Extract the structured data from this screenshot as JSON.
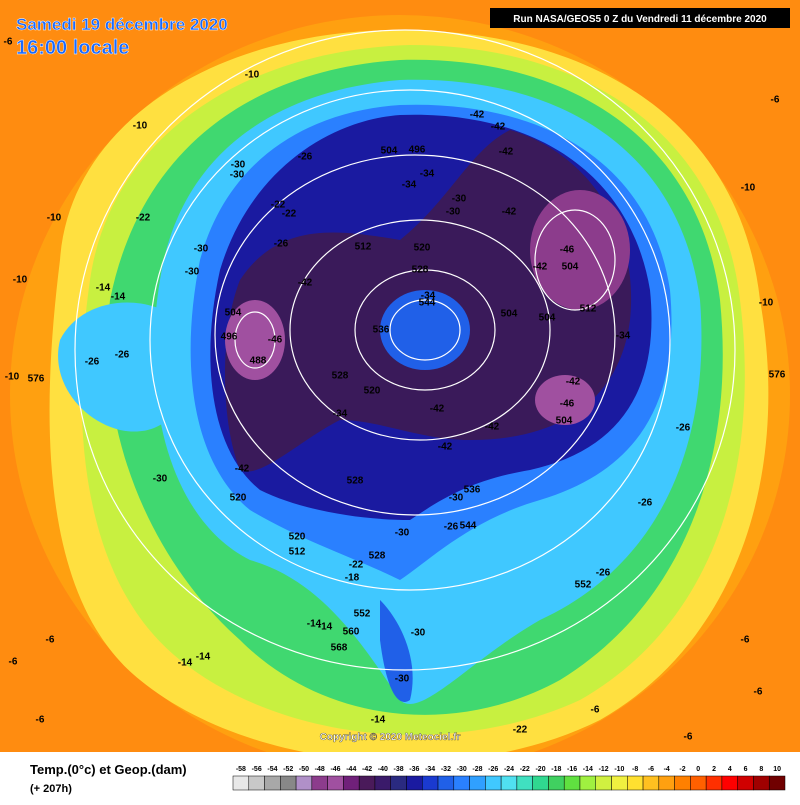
{
  "header": {
    "date": "Samedi 19 décembre 2020",
    "time": "16:00 locale",
    "run": "Run NASA/GEOS5 0 Z du Vendredi 11 décembre 2020"
  },
  "copyright": "Copyright © 2020 Meteociel.fr",
  "legend": {
    "title": "Temp.(0°c) et Geop.(dam)",
    "lead": "(+ 207h)",
    "scale": [
      -58,
      -56,
      -54,
      -52,
      -50,
      -48,
      -46,
      -44,
      -42,
      -40,
      -38,
      -36,
      -34,
      -32,
      -30,
      -28,
      -26,
      -24,
      -22,
      -20,
      -18,
      -16,
      -14,
      -12,
      -10,
      -8,
      -6,
      -4,
      -2,
      0,
      2,
      4,
      6,
      8,
      10
    ],
    "colors": [
      "#e8e8e8",
      "#c8c8c8",
      "#a8a8a8",
      "#888888",
      "#b090c8",
      "#8c3c8c",
      "#a050a0",
      "#70207a",
      "#4a1a5a",
      "#3a1a6a",
      "#2a2a80",
      "#1a1aa0",
      "#1a3ad0",
      "#2060e8",
      "#2a80ff",
      "#30a0ff",
      "#40c8ff",
      "#50e0f0",
      "#40e0c0",
      "#30d890",
      "#40d060",
      "#60e040",
      "#a0f040",
      "#d0f040",
      "#f0f040",
      "#ffe030",
      "#ffc020",
      "#ffa010",
      "#ff8000",
      "#ff6000",
      "#ff3000",
      "#ff0000",
      "#d00000",
      "#a00000",
      "#700000"
    ]
  },
  "map_labels": [
    "-6",
    "-10",
    "-10",
    "-10",
    "-10",
    "-10",
    "-10",
    "-10",
    "-6",
    "-42",
    "-42",
    "504",
    "496",
    "-42",
    "-34",
    "-34",
    "-30",
    "-30",
    "-42",
    "-26",
    "-30",
    "-30",
    "-22",
    "-22",
    "-22",
    "-26",
    "512",
    "520",
    "528",
    "-30",
    "-30",
    "-42",
    "504",
    "-46",
    "-42",
    "-34",
    "544",
    "536",
    "504",
    "504",
    "512",
    "-34",
    "504",
    "-46",
    "496",
    "488",
    "-26",
    "-26",
    "576",
    "576",
    "528",
    "520",
    "-42",
    "-46",
    "504",
    "-34",
    "-42",
    "-42",
    "-42",
    "-26",
    "-42",
    "-30",
    "528",
    "536",
    "-30",
    "520",
    "-26",
    "-26",
    "544",
    "-30",
    "520",
    "512",
    "528",
    "-22",
    "-18",
    "552",
    "-26",
    "552",
    "560",
    "568",
    "-14",
    "-14",
    "-30",
    "-14",
    "-14",
    "-30",
    "-14",
    "-22",
    "-6",
    "-6",
    "-6",
    "-6",
    "-6",
    "-6",
    "-6",
    "-14",
    "-14"
  ]
}
